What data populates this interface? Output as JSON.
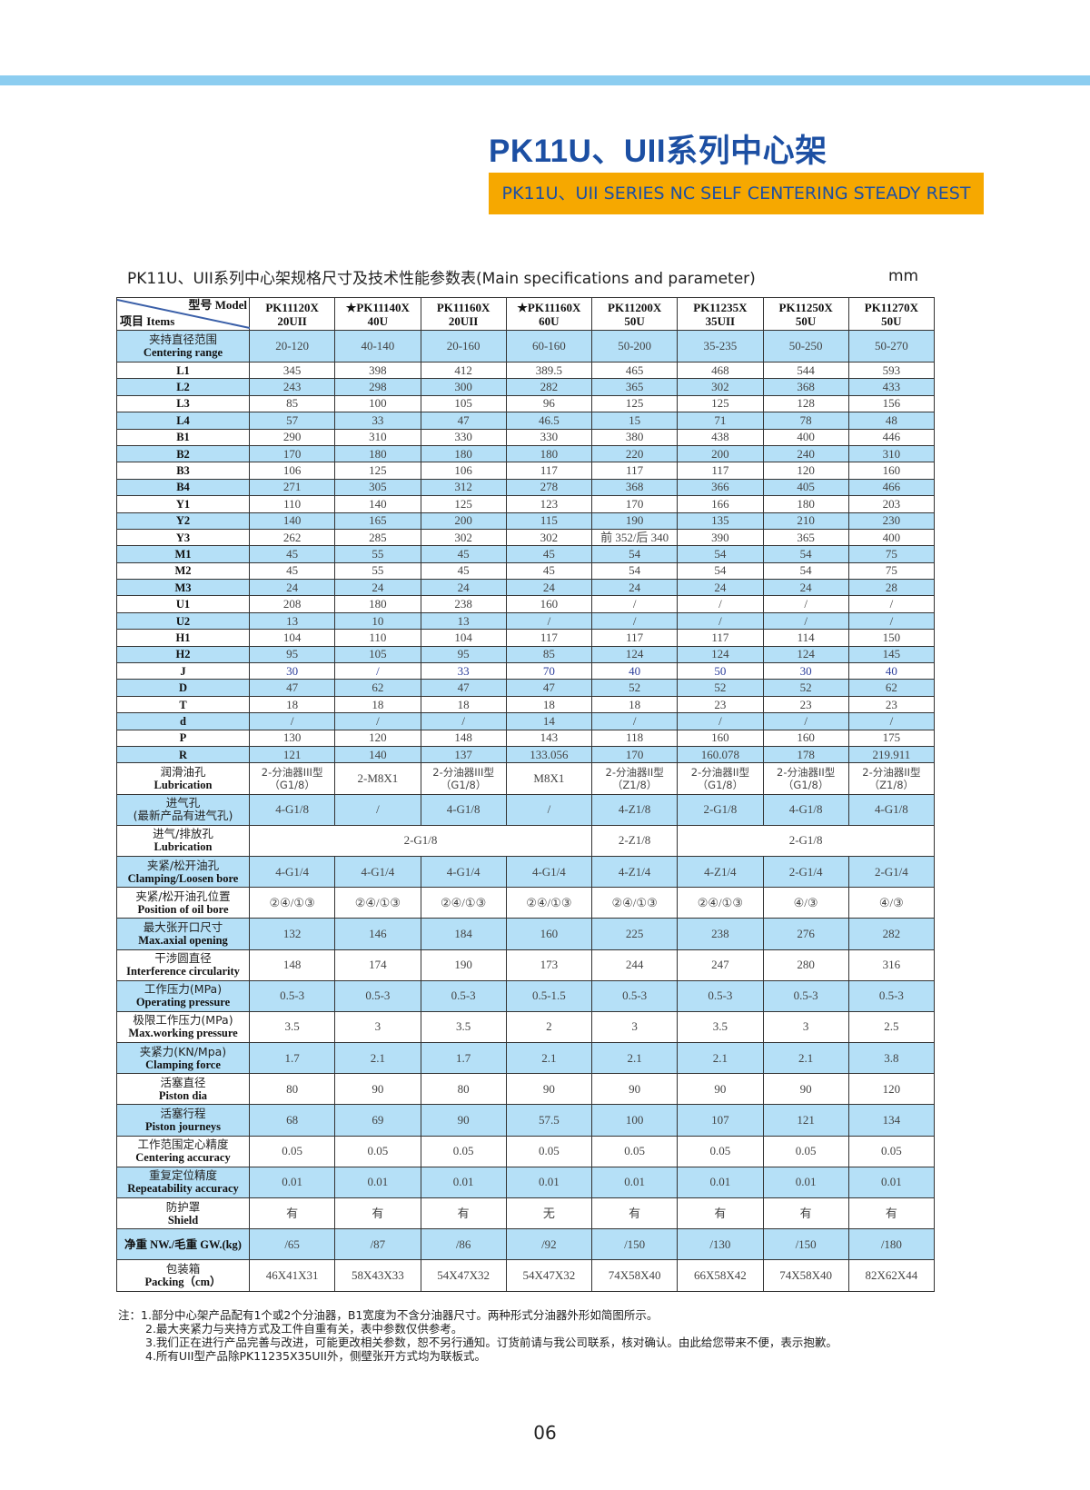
{
  "header": {
    "title": "PK11U、UII系列中心架",
    "subtitle": "PK11U、UII SERIES NC SELF CENTERING STEADY REST",
    "accent_color": "#1c4fa3",
    "banner_color": "#f6a800",
    "topbar_color": "#8ccdf0"
  },
  "table_caption": "PK11U、UII系列中心架规格尺寸及技术性能参数表(Main specifications and parameter)",
  "unit": "mm",
  "table": {
    "corner_model": "型号 Model",
    "corner_items": "项目 Items",
    "stripe_color": "#b5e0f7",
    "highlight_text_color": "#2d3f9c",
    "models": [
      [
        "PK11120X",
        "20UII"
      ],
      [
        "★PK11140X",
        "40U"
      ],
      [
        "PK11160X",
        "20UII"
      ],
      [
        "★PK11160X",
        "60U"
      ],
      [
        "PK11200X",
        "50U"
      ],
      [
        "PK11235X",
        "35UII"
      ],
      [
        "PK11250X",
        "50U"
      ],
      [
        "PK11270X",
        "50U"
      ]
    ],
    "rows": [
      {
        "cn": "夹持直径范围",
        "en": "Centering range",
        "cells": [
          "20-120",
          "40-140",
          "20-160",
          "60-160",
          "50-200",
          "35-235",
          "50-250",
          "50-270"
        ]
      },
      {
        "en": "L1",
        "cells": [
          "345",
          "398",
          "412",
          "389.5",
          "465",
          "468",
          "544",
          "593"
        ]
      },
      {
        "en": "L2",
        "cells": [
          "243",
          "298",
          "300",
          "282",
          "365",
          "302",
          "368",
          "433"
        ]
      },
      {
        "en": "L3",
        "cells": [
          "85",
          "100",
          "105",
          "96",
          "125",
          "125",
          "128",
          "156"
        ]
      },
      {
        "en": "L4",
        "cells": [
          "57",
          "33",
          "47",
          "46.5",
          "15",
          "71",
          "78",
          "48"
        ]
      },
      {
        "en": "B1",
        "cells": [
          "290",
          "310",
          "330",
          "330",
          "380",
          "438",
          "400",
          "446"
        ]
      },
      {
        "en": "B2",
        "cells": [
          "170",
          "180",
          "180",
          "180",
          "220",
          "200",
          "240",
          "310"
        ]
      },
      {
        "en": "B3",
        "cells": [
          "106",
          "125",
          "106",
          "117",
          "117",
          "117",
          "120",
          "160"
        ]
      },
      {
        "en": "B4",
        "cells": [
          "271",
          "305",
          "312",
          "278",
          "368",
          "366",
          "405",
          "466"
        ]
      },
      {
        "en": "Y1",
        "cells": [
          "110",
          "140",
          "125",
          "123",
          "170",
          "166",
          "180",
          "203"
        ]
      },
      {
        "en": "Y2",
        "cells": [
          "140",
          "165",
          "200",
          "115",
          "190",
          "135",
          "210",
          "230"
        ]
      },
      {
        "en": "Y3",
        "cells": [
          "262",
          "285",
          "302",
          "302",
          "前 352/后 340",
          "390",
          "365",
          "400"
        ]
      },
      {
        "en": "M1",
        "cells": [
          "45",
          "55",
          "45",
          "45",
          "54",
          "54",
          "54",
          "75"
        ]
      },
      {
        "en": "M2",
        "cells": [
          "45",
          "55",
          "45",
          "45",
          "54",
          "54",
          "54",
          "75"
        ]
      },
      {
        "en": "M3",
        "cells": [
          "24",
          "24",
          "24",
          "24",
          "24",
          "24",
          "24",
          "28"
        ]
      },
      {
        "en": "U1",
        "cells": [
          "208",
          "180",
          "238",
          "160",
          "/",
          "/",
          "/",
          "/"
        ]
      },
      {
        "en": "U2",
        "cells": [
          "13",
          "10",
          "13",
          "/",
          "/",
          "/",
          "/",
          "/"
        ]
      },
      {
        "en": "H1",
        "cells": [
          "104",
          "110",
          "104",
          "117",
          "117",
          "117",
          "114",
          "150"
        ]
      },
      {
        "en": "H2",
        "cells": [
          "95",
          "105",
          "95",
          "85",
          "124",
          "124",
          "124",
          "145"
        ]
      },
      {
        "en": "J",
        "highlight": true,
        "cells": [
          "30",
          "/",
          "33",
          "70",
          "40",
          "50",
          "30",
          "40"
        ]
      },
      {
        "en": "D",
        "cells": [
          "47",
          "62",
          "47",
          "47",
          "52",
          "52",
          "52",
          "62"
        ]
      },
      {
        "en": "T",
        "cells": [
          "18",
          "18",
          "18",
          "18",
          "18",
          "23",
          "23",
          "23"
        ]
      },
      {
        "en": "d",
        "cells": [
          "/",
          "/",
          "/",
          "14",
          "/",
          "/",
          "/",
          "/"
        ]
      },
      {
        "en": "P",
        "cells": [
          "130",
          "120",
          "148",
          "143",
          "118",
          "160",
          "160",
          "175"
        ]
      },
      {
        "en": "R",
        "cells": [
          "121",
          "140",
          "137",
          "133.056",
          "170",
          "160.078",
          "178",
          "219.911"
        ]
      },
      {
        "cn": "润滑油孔",
        "en": "Lubrication",
        "cells": [
          "2-分油器III型\n（G1/8）",
          "2-M8X1",
          "2-分油器III型\n（G1/8）",
          "M8X1",
          "2-分油器II型\n（Z1/8）",
          "2-分油器II型\n（G1/8）",
          "2-分油器II型\n（G1/8）",
          "2-分油器II型\n（Z1/8）"
        ]
      },
      {
        "cn": "进气孔",
        "en": "(最新产品有进气孔)",
        "en_is_cn": true,
        "cells": [
          "4-G1/8",
          "/",
          "4-G1/8",
          "/",
          "4-Z1/8",
          "2-G1/8",
          "4-G1/8",
          "4-G1/8"
        ]
      },
      {
        "cn": "进气/排放孔",
        "en": "Lubrication",
        "cells": [
          {
            "text": "2-G1/8",
            "span": 4
          },
          {
            "text": "2-Z1/8",
            "span": 1
          },
          {
            "text": "2-G1/8",
            "span": 3
          }
        ]
      },
      {
        "cn": "夹紧/松开油孔",
        "en": "Clamping/Loosen bore",
        "cells": [
          "4-G1/4",
          "4-G1/4",
          "4-G1/4",
          "4-G1/4",
          "4-Z1/4",
          "4-Z1/4",
          "2-G1/4",
          "2-G1/4"
        ]
      },
      {
        "cn": "夹紧/松开油孔位置",
        "en": "Position of oil bore",
        "cells": [
          "②④/①③",
          "②④/①③",
          "②④/①③",
          "②④/①③",
          "②④/①③",
          "②④/①③",
          "④/③",
          "④/③"
        ]
      },
      {
        "cn": "最大张开口尺寸",
        "en": "Max.axial opening",
        "cells": [
          "132",
          "146",
          "184",
          "160",
          "225",
          "238",
          "276",
          "282"
        ]
      },
      {
        "cn": "干涉圆直径",
        "en": "Interference circularity",
        "cells": [
          "148",
          "174",
          "190",
          "173",
          "244",
          "247",
          "280",
          "316"
        ]
      },
      {
        "cn": "工作压力(MPa)",
        "en": "Operating pressure",
        "cells": [
          "0.5-3",
          "0.5-3",
          "0.5-3",
          "0.5-1.5",
          "0.5-3",
          "0.5-3",
          "0.5-3",
          "0.5-3"
        ]
      },
      {
        "cn": "极限工作压力(MPa)",
        "en": "Max.working pressure",
        "cells": [
          "3.5",
          "3",
          "3.5",
          "2",
          "3",
          "3.5",
          "3",
          "2.5"
        ]
      },
      {
        "cn": "夹紧力(KN/Mpa)",
        "en": "Clamping force",
        "cells": [
          "1.7",
          "2.1",
          "1.7",
          "2.1",
          "2.1",
          "2.1",
          "2.1",
          "3.8"
        ]
      },
      {
        "cn": "活塞直径",
        "en": "Piston dia",
        "cells": [
          "80",
          "90",
          "80",
          "90",
          "90",
          "90",
          "90",
          "120"
        ]
      },
      {
        "cn": "活塞行程",
        "en": "Piston journeys",
        "cells": [
          "68",
          "69",
          "90",
          "57.5",
          "100",
          "107",
          "121",
          "134"
        ]
      },
      {
        "cn": "工作范围定心精度",
        "en": "Centering accuracy",
        "cells": [
          "0.05",
          "0.05",
          "0.05",
          "0.05",
          "0.05",
          "0.05",
          "0.05",
          "0.05"
        ]
      },
      {
        "cn": "重复定位精度",
        "en": "Repeatability accuracy",
        "cells": [
          "0.01",
          "0.01",
          "0.01",
          "0.01",
          "0.01",
          "0.01",
          "0.01",
          "0.01"
        ]
      },
      {
        "cn": "防护罩",
        "en": "Shield",
        "cells": [
          "有",
          "有",
          "有",
          "无",
          "有",
          "有",
          "有",
          "有"
        ]
      },
      {
        "en": "净重 NW./毛重 GW.(kg)",
        "cells": [
          "/65",
          "/87",
          "/86",
          "/92",
          "/150",
          "/130",
          "/150",
          "/180"
        ]
      },
      {
        "cn": "包装箱",
        "en": "Packing（cm）",
        "cells": [
          "46X41X31",
          "58X43X33",
          "54X47X32",
          "54X47X32",
          "74X58X40",
          "66X58X42",
          "74X58X40",
          "82X62X44"
        ]
      }
    ]
  },
  "notes": {
    "prefix": "注：",
    "items": [
      "1.部分中心架产品配有1个或2个分油器，B1宽度为不含分油器尺寸。两种形式分油器外形如简图所示。",
      "2.最大夹紧力与夹持方式及工件自重有关，表中参数仅供参考。",
      "3.我们正在进行产品完善与改进，可能更改相关参数，恕不另行通知。订货前请与我公司联系，核对确认。由此给您带来不便，表示抱歉。",
      "4.所有UII型产品除PK11235X35UII外，侧壁张开方式均为联板式。"
    ]
  },
  "page_number": "06"
}
